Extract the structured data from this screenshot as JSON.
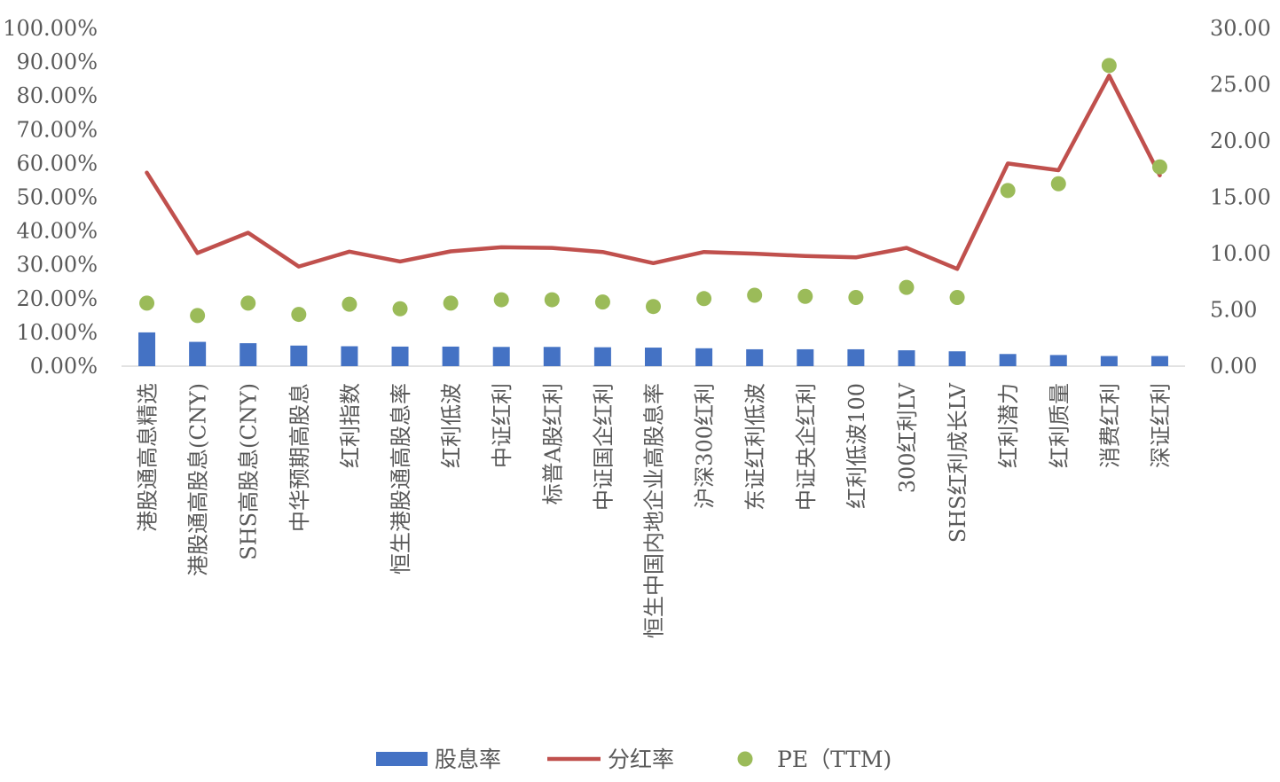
{
  "chart_data": {
    "type": "bar",
    "categories": [
      "港股通高息精选",
      "港股通高股息(CNY)",
      "SHS高股息(CNY)",
      "中华预期高股息",
      "红利指数",
      "恒生港股通高股息率",
      "红利低波",
      "中证红利",
      "标普A股红利",
      "中证国企红利",
      "恒生中国内地企业高股息率",
      "沪深300红利",
      "东证红利低波",
      "中证央企红利",
      "红利低波100",
      "300红利LV",
      "SHS红利成长LV",
      "红利潜力",
      "红利质量",
      "消费红利",
      "深证红利"
    ],
    "series": [
      {
        "name": "股息率",
        "type": "bar",
        "axis": "left",
        "color": "#4472C4",
        "values": [
          10.0,
          7.2,
          6.8,
          6.1,
          5.9,
          5.8,
          5.8,
          5.7,
          5.7,
          5.6,
          5.5,
          5.3,
          5.0,
          5.0,
          5.0,
          4.7,
          4.4,
          3.6,
          3.3,
          3.0,
          3.0
        ]
      },
      {
        "name": "分红率",
        "type": "line",
        "axis": "left",
        "color": "#C0504D",
        "values": [
          57.3,
          33.5,
          39.5,
          29.5,
          33.9,
          31.0,
          34.0,
          35.2,
          35.0,
          33.8,
          30.5,
          33.8,
          33.3,
          32.6,
          32.2,
          35.0,
          28.8,
          60.0,
          58.0,
          86.0,
          56.5
        ]
      },
      {
        "name": "PE（TTM)",
        "type": "scatter",
        "axis": "right",
        "color": "#9BBB59",
        "values": [
          5.6,
          4.5,
          5.6,
          4.6,
          5.5,
          5.1,
          5.6,
          5.9,
          5.9,
          5.7,
          5.3,
          6.0,
          6.3,
          6.2,
          6.1,
          7.0,
          6.1,
          15.6,
          16.2,
          26.7,
          17.7
        ]
      }
    ],
    "y_left": {
      "ylim": [
        0,
        100
      ],
      "ticks": [
        "0.00%",
        "10.00%",
        "20.00%",
        "30.00%",
        "40.00%",
        "50.00%",
        "60.00%",
        "70.00%",
        "80.00%",
        "90.00%",
        "100.00%"
      ]
    },
    "y_right": {
      "ylim": [
        0,
        30
      ],
      "ticks": [
        "0.00",
        "5.00",
        "10.00",
        "15.00",
        "20.00",
        "25.00",
        "30.00"
      ]
    },
    "grid": false,
    "legend_position": "bottom"
  }
}
